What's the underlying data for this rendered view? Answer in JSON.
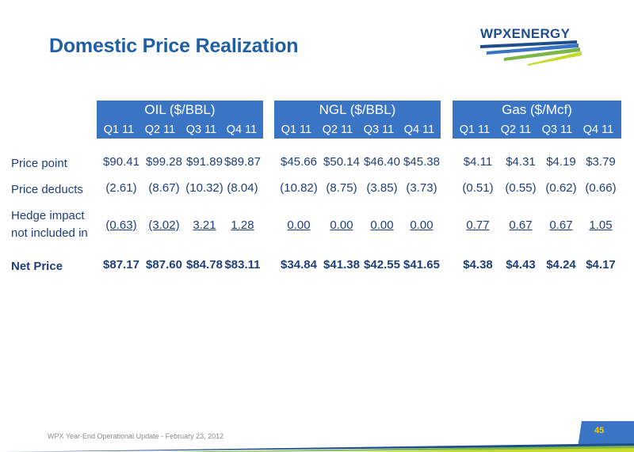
{
  "title": "Domestic Price Realization",
  "logo": {
    "text": "WPXENERGY",
    "colors": [
      "#1F4E8C",
      "#3A74C4",
      "#7AB648",
      "#C6D92E"
    ]
  },
  "groups": [
    {
      "title": "OIL ($/BBL)",
      "quarters": [
        "Q1 11",
        "Q2 11",
        "Q3 11",
        "Q4  11"
      ]
    },
    {
      "title": "NGL ($/BBL)",
      "quarters": [
        "Q1 11",
        "Q2 11",
        "Q3 11",
        "Q4  11"
      ]
    },
    {
      "title": "Gas ($/Mcf)",
      "quarters": [
        "Q1 11",
        "Q2 11",
        "Q3 11",
        "Q4  11"
      ]
    }
  ],
  "rows": [
    {
      "label": "Price point",
      "values": [
        "$90.41",
        "$99.28",
        "$91.89",
        "$89.87",
        "$45.66",
        "$50.14",
        "$46.40",
        "$45.38",
        "$4.11",
        "$4.31",
        "$4.19",
        "$3.79"
      ]
    },
    {
      "label": "Price deducts",
      "values": [
        "(2.61)",
        "(8.67)",
        "(10.32)",
        "(8.04)",
        "(10.82)",
        "(8.75)",
        "(3.85)",
        "(3.73)",
        "(0.51)",
        "(0.55)",
        "(0.62)",
        "(0.66)"
      ]
    },
    {
      "label_line1": "Hedge impact",
      "label_line2": "not included in",
      "values": [
        "(0.63)",
        "(3.02)",
        "3.21",
        "1.28",
        "0.00",
        "0.00",
        "0.00",
        "0.00",
        "0.77",
        "0.67",
        "0.67",
        "1.05"
      ]
    },
    {
      "label": "Net Price",
      "values": [
        "$87.17",
        "$87.60",
        "$84.78",
        "$83.11",
        "$34.84",
        "$41.38",
        "$42.55",
        "$41.65",
        "$4.38",
        "$4.43",
        "$4.24",
        "$4.17"
      ]
    }
  ],
  "footer": {
    "text": "WPX Year-End Operational Update - February 23, 2012",
    "page": "45"
  },
  "colors": {
    "header_bg": "#3A74C4",
    "title": "#1F5FA6",
    "text": "#1F3F7A",
    "page_num": "#F6D000"
  }
}
